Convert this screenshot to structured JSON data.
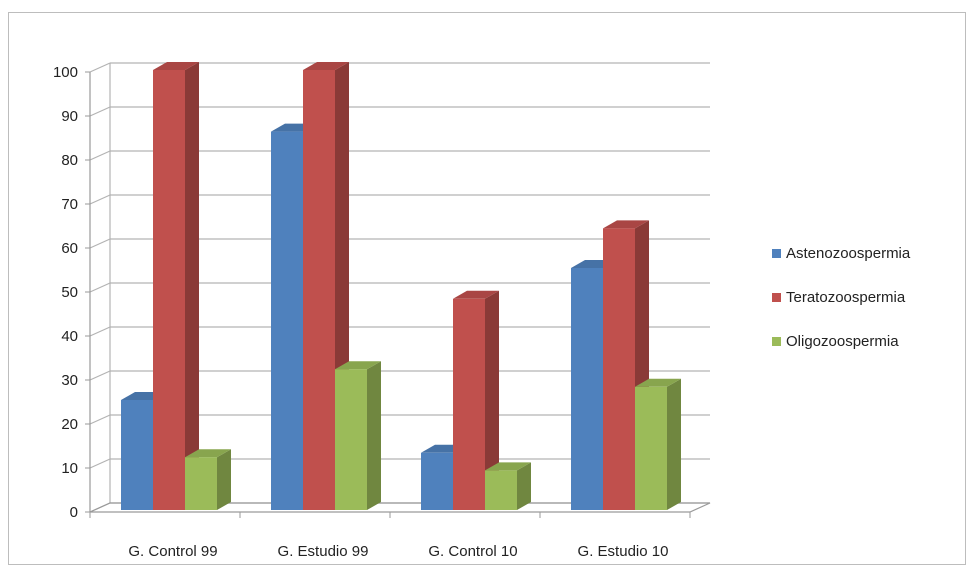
{
  "chart_data": {
    "type": "bar",
    "style": "3d-clustered-column",
    "categories": [
      "G. Control 99",
      "G. Estudio 99",
      "G. Control 10",
      "G. Estudio 10"
    ],
    "series": [
      {
        "name": "Astenozoospermia",
        "color": "#4f81bd",
        "values": [
          25,
          86,
          13,
          55
        ]
      },
      {
        "name": "Teratozoospermia",
        "color": "#c0504d",
        "values": [
          100,
          100,
          48,
          64
        ]
      },
      {
        "name": "Oligozoospermia",
        "color": "#9bbb59",
        "values": [
          12,
          32,
          9,
          28
        ]
      }
    ],
    "y_ticks": [
      "0",
      "10",
      "20",
      "30",
      "40",
      "50",
      "60",
      "70",
      "80",
      "90",
      "100"
    ],
    "ylim": [
      0,
      100
    ],
    "grid": true,
    "legend_position": "right"
  }
}
